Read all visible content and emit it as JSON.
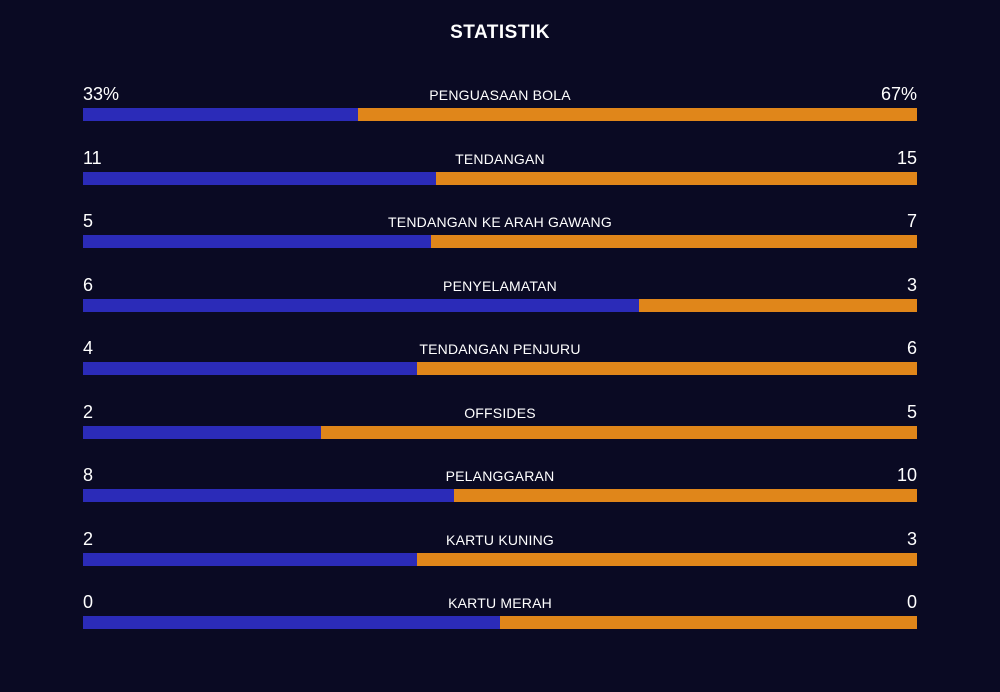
{
  "title": "STATISTIK",
  "stats": [
    {
      "label": "PENGUASAAN BOLA",
      "home": {
        "value": 33,
        "label": "33%"
      },
      "away": {
        "value": 67,
        "label": "67%"
      }
    },
    {
      "label": "TENDANGAN",
      "home": 11,
      "away": 15
    },
    {
      "label": "TENDANGAN KE ARAH GAWANG",
      "home": 5,
      "away": 7
    },
    {
      "label": "PENYELAMATAN",
      "home": 6,
      "away": 3
    },
    {
      "label": "TENDANGAN PENJURU",
      "home": 4,
      "away": 6
    },
    {
      "label": "OFFSIDES",
      "home": 2,
      "away": 5
    },
    {
      "label": "PELANGGARAN",
      "home": 8,
      "away": 10
    },
    {
      "label": "KARTU KUNING",
      "home": 2,
      "away": 3
    },
    {
      "label": "KARTU MERAH",
      "home": 0,
      "away": 0
    }
  ]
}
